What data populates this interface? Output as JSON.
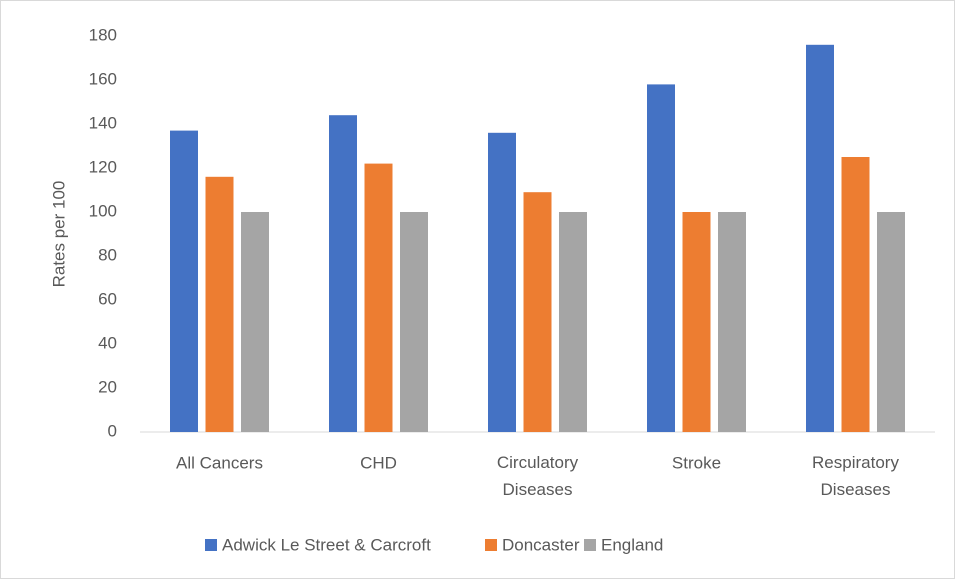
{
  "chart_data": {
    "type": "bar",
    "y_label": "Rates per 100",
    "categories": [
      "All Cancers",
      "CHD",
      "Circulatory Diseases",
      "Stroke",
      "Respiratory Diseases"
    ],
    "series": [
      {
        "name": "Adwick Le Street & Carcroft",
        "color": "#4472c4",
        "values": [
          137,
          144,
          136,
          158,
          176
        ]
      },
      {
        "name": "Doncaster",
        "color": "#ed7d31",
        "values": [
          116,
          122,
          109,
          100,
          125
        ]
      },
      {
        "name": "England",
        "color": "#a5a5a5",
        "values": [
          100,
          100,
          100,
          100,
          100
        ]
      }
    ],
    "ylim": [
      0,
      180
    ],
    "yticks": [
      0,
      20,
      40,
      60,
      80,
      100,
      120,
      140,
      160,
      180
    ],
    "grid": false,
    "legend": "bottom"
  }
}
